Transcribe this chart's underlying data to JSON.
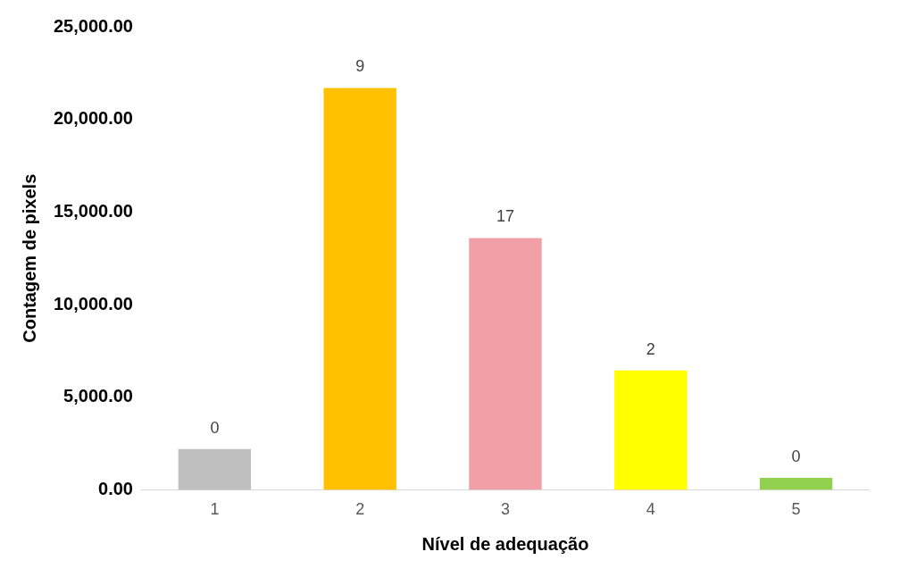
{
  "chart_data": {
    "type": "bar",
    "xlabel": "Nível de adequação",
    "ylabel": "Contagem de pixels",
    "categories": [
      "1",
      "2",
      "3",
      "4",
      "5"
    ],
    "values": [
      2200,
      21700,
      13600,
      6450,
      650
    ],
    "colors": [
      "#bfbfbf",
      "#ffc000",
      "#f2a0a7",
      "#ffff00",
      "#92d050"
    ],
    "annotations": [
      {
        "text": "0",
        "x": "1",
        "y": 2200
      },
      {
        "text": "9",
        "x": "2",
        "y": 21700
      },
      {
        "text": "17",
        "x": "3",
        "y": 13600
      },
      {
        "text": "2",
        "x": "4",
        "y": 6450
      },
      {
        "text": "0",
        "x": "5",
        "y": 650
      }
    ],
    "ylim": [
      0,
      25000
    ],
    "yticks": [
      {
        "value": 0,
        "label": "0.00"
      },
      {
        "value": 5000,
        "label": "5,000.00"
      },
      {
        "value": 10000,
        "label": "10,000.00"
      },
      {
        "value": 15000,
        "label": "15,000.00"
      },
      {
        "value": 20000,
        "label": "20,000.00"
      },
      {
        "value": 25000,
        "label": "25,000.00"
      }
    ],
    "grid": false,
    "legend": false
  }
}
